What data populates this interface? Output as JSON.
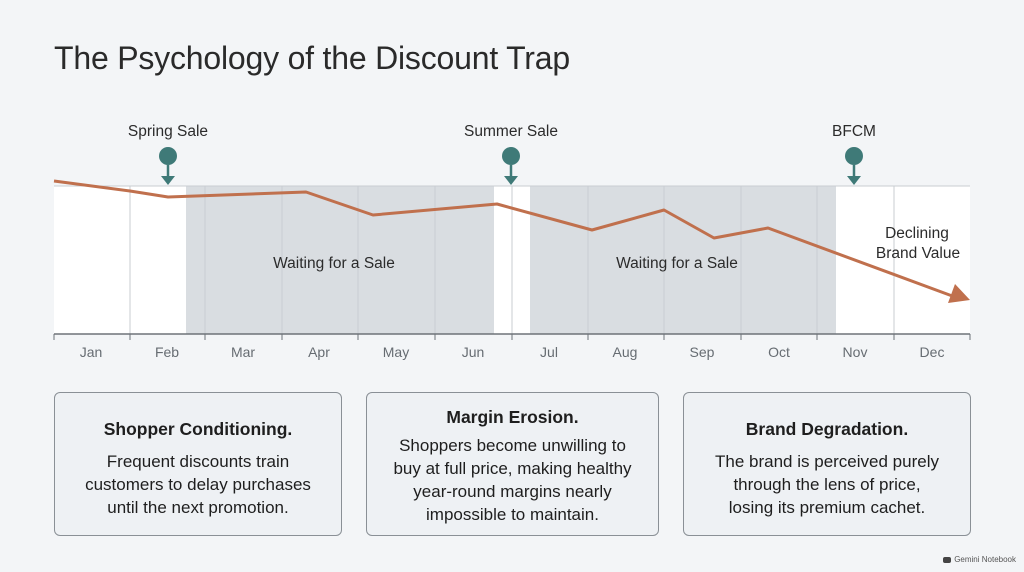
{
  "title": "The Psychology of the Discount Trap",
  "timeline": {
    "months": [
      "Jan",
      "Feb",
      "Mar",
      "Apr",
      "May",
      "Jun",
      "Jul",
      "Aug",
      "Sep",
      "Oct",
      "Nov",
      "Dec"
    ],
    "markers": [
      {
        "label": "Spring Sale"
      },
      {
        "label": "Summer Sale"
      },
      {
        "label": "BFCM"
      }
    ],
    "waiting_labels": [
      "Waiting for a Sale",
      "Waiting for a Sale"
    ],
    "declining_label_line1": "Declining",
    "declining_label_line2": "Brand Value",
    "colors": {
      "trend_line": "#c0704d",
      "marker": "#3f7a78",
      "shaded_band": "#d8dce0",
      "grid": "#c9cdd2"
    }
  },
  "cards": [
    {
      "title": "Shopper Conditioning.",
      "body": [
        "Frequent discounts train",
        "customers to delay purchases",
        "until the next promotion."
      ]
    },
    {
      "title": "Margin Erosion.",
      "body": [
        "Shoppers become unwilling to",
        "buy at full price, making healthy",
        "year-round margins nearly",
        "impossible to maintain."
      ]
    },
    {
      "title": "Brand Degradation.",
      "body": [
        "The brand is perceived purely",
        "through the lens of price,",
        "losing its premium cachet."
      ]
    }
  ],
  "watermark": "Gemini Notebook"
}
